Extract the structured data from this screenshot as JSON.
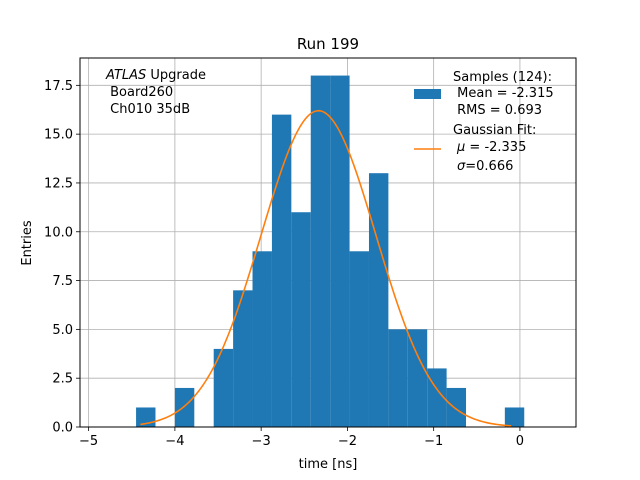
{
  "chart_data": {
    "type": "bar",
    "title": "Run 199",
    "xlabel": "time [ns]",
    "ylabel": "Entries",
    "xlim": [
      -5.1,
      0.65
    ],
    "ylim": [
      0,
      18.9
    ],
    "grid": true,
    "xticks": [
      -5,
      -4,
      -3,
      -2,
      -1,
      0
    ],
    "xtick_labels": [
      "−5",
      "−4",
      "−3",
      "−2",
      "−1",
      "0"
    ],
    "yticks": [
      0.0,
      2.5,
      5.0,
      7.5,
      10.0,
      12.5,
      15.0,
      17.5
    ],
    "ytick_labels": [
      "0.0",
      "2.5",
      "5.0",
      "7.5",
      "10.0",
      "12.5",
      "15.0",
      "17.5"
    ],
    "histogram": {
      "bin_edges": [
        -4.45,
        -4.225,
        -4.0,
        -3.775,
        -3.55,
        -3.325,
        -3.1,
        -2.875,
        -2.65,
        -2.425,
        -2.2,
        -1.975,
        -1.75,
        -1.525,
        -1.3,
        -1.075,
        -0.85,
        -0.625,
        -0.4,
        -0.175,
        0.05
      ],
      "counts": [
        1,
        0,
        2,
        0,
        4,
        7,
        9,
        16,
        11,
        18,
        18,
        9,
        13,
        5,
        5,
        3,
        2,
        0,
        0,
        1
      ],
      "color": "#1f77b4"
    },
    "fit": {
      "type": "gaussian",
      "amplitude": 16.2,
      "mu": -2.335,
      "sigma": 0.666,
      "x_range": [
        -4.4,
        -0.1
      ],
      "color": "#ff7f0e"
    },
    "annotation": {
      "line1_italic": "ATLAS",
      "line1_rest": " Upgrade",
      "line2": " Board260",
      "line3": " Ch010 35dB"
    },
    "legend": {
      "placement": "top-right",
      "samples_header": "Samples (124):",
      "samples_mean": " Mean = -2.315",
      "samples_rms": " RMS = 0.693",
      "fit_header": "Gaussian Fit:",
      "fit_mu_symbol": "μ",
      "fit_mu_rest": " = -2.335",
      "fit_sigma_symbol": "σ",
      "fit_sigma_rest": "=0.666"
    }
  }
}
